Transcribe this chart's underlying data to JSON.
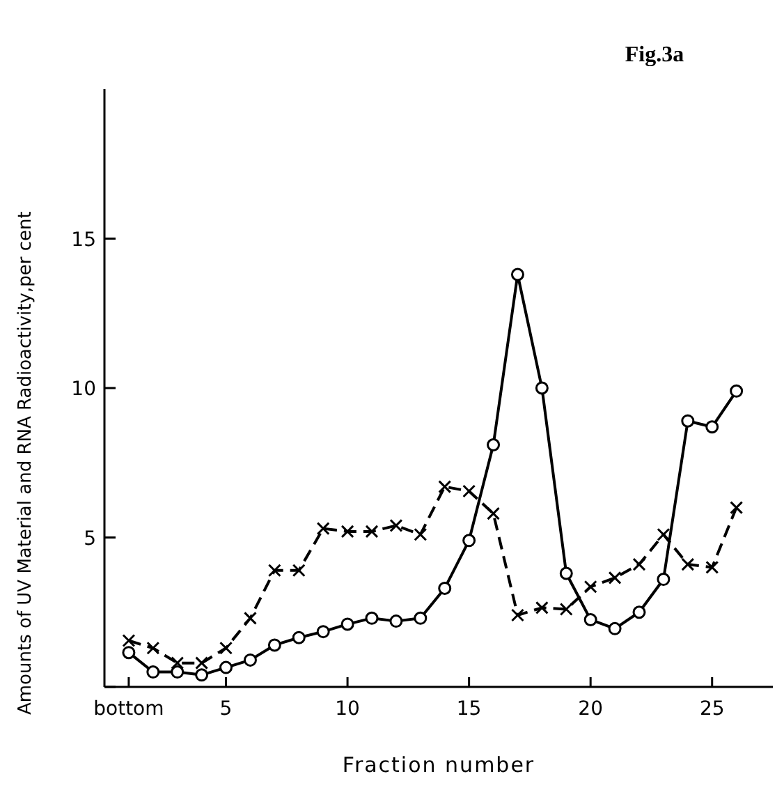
{
  "chart_data": {
    "type": "line",
    "title": "Fig.3a",
    "xlabel": "Fraction number",
    "ylabel": "Amounts of UV Material and RNA Radioactivity,per cent",
    "x": [
      1,
      2,
      3,
      4,
      5,
      6,
      7,
      8,
      9,
      10,
      11,
      12,
      13,
      14,
      15,
      16,
      17,
      18,
      19,
      20,
      21,
      22,
      23,
      24,
      25,
      26
    ],
    "series": [
      {
        "color": "#000000",
        "marker": "circle",
        "line_style": "solid",
        "values": [
          1.15,
          0.5,
          0.5,
          0.4,
          0.65,
          0.9,
          1.4,
          1.65,
          1.85,
          2.1,
          2.3,
          2.2,
          2.3,
          3.3,
          4.9,
          8.1,
          13.8,
          10.0,
          3.8,
          2.25,
          1.95,
          2.5,
          3.6,
          8.9,
          8.7,
          9.9
        ]
      },
      {
        "color": "#000000",
        "marker": "cross",
        "line_style": "dashed",
        "values": [
          1.55,
          1.3,
          0.8,
          0.8,
          1.3,
          2.3,
          3.9,
          3.9,
          5.3,
          5.2,
          5.2,
          5.4,
          5.1,
          6.7,
          6.55,
          5.8,
          2.4,
          2.65,
          2.6,
          3.35,
          3.65,
          4.1,
          5.1,
          4.1,
          4.0,
          6.0
        ]
      }
    ],
    "xlim": [
      0,
      27.5
    ],
    "ylim": [
      0,
      20
    ],
    "xticks": [
      {
        "value": 1,
        "label": "bottom"
      },
      5,
      10,
      15,
      20,
      25
    ],
    "yticks": [
      {
        "value": 0,
        "label": null
      },
      5,
      10,
      15
    ],
    "grid": false
  }
}
